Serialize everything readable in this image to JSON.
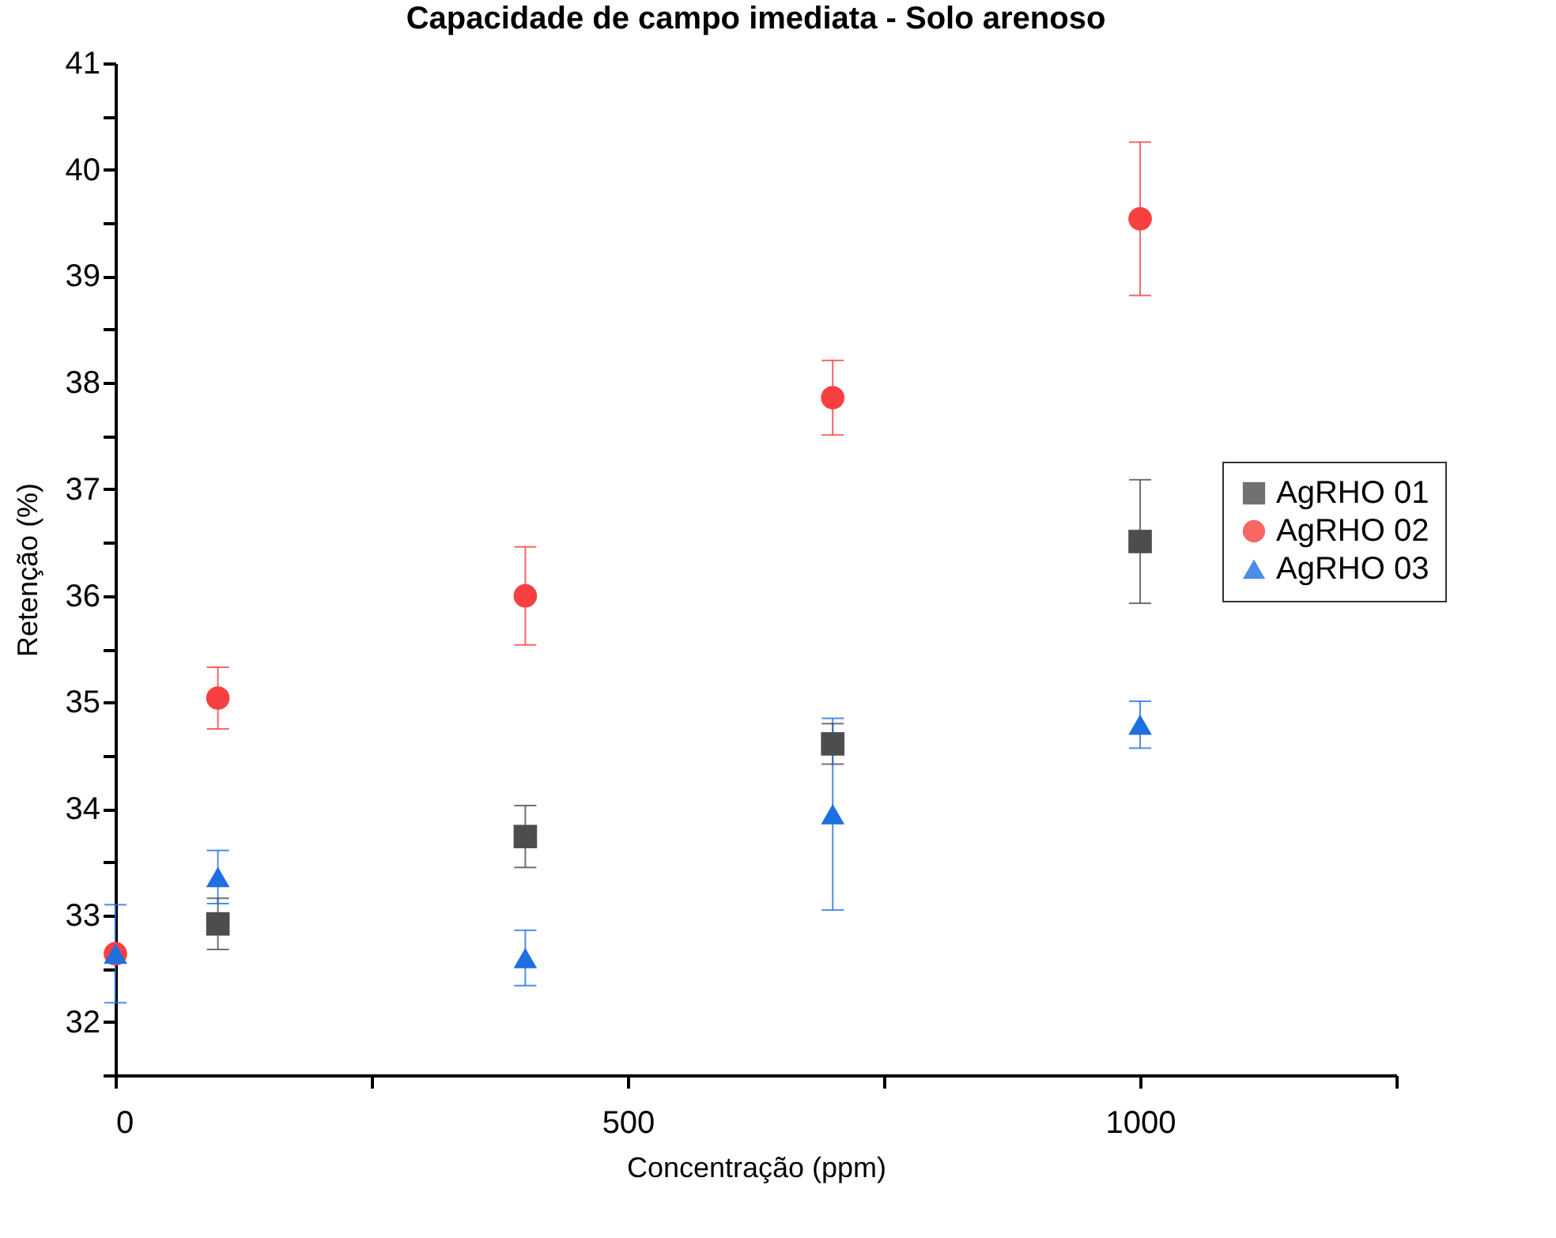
{
  "chart_data": {
    "type": "scatter",
    "title": "Capacidade de campo imediata - Solo arenoso",
    "xlabel": "Concentração (ppm)",
    "ylabel": "Retenção (%)",
    "x": [
      0,
      100,
      400,
      700,
      1000
    ],
    "series": [
      {
        "name": "AgRHO 01",
        "color": "#4d4d4d",
        "marker": "square",
        "values": [
          null,
          32.92,
          33.74,
          34.61,
          36.51
        ],
        "errors": [
          null,
          0.24,
          0.29,
          0.19,
          0.58
        ]
      },
      {
        "name": "AgRHO 02",
        "color": "#f84040",
        "marker": "circle",
        "values": [
          32.64,
          35.04,
          36.0,
          37.86,
          39.54
        ],
        "errors": [
          null,
          0.29,
          0.46,
          0.35,
          0.72
        ]
      },
      {
        "name": "AgRHO 03",
        "color": "#1f6fe0",
        "marker": "triangle",
        "values": [
          32.64,
          33.36,
          32.6,
          33.95,
          34.79
        ],
        "errors": [
          0.46,
          0.25,
          0.26,
          0.9,
          0.22
        ]
      }
    ],
    "xlim": [
      0,
      1250
    ],
    "xticks": [
      0,
      {
        "value": 250,
        "label": null
      },
      500,
      {
        "value": 750,
        "label": null
      },
      1000,
      {
        "value": 1250,
        "label": null
      }
    ],
    "ylim": [
      31.5,
      41
    ],
    "yticks": [
      {
        "value": 31.5,
        "label": null
      },
      32,
      {
        "value": 32.5,
        "label": null
      },
      33,
      {
        "value": 33.5,
        "label": null
      },
      34,
      {
        "value": 34.5,
        "label": null
      },
      35,
      {
        "value": 35.5,
        "label": null
      },
      36,
      {
        "value": 36.5,
        "label": null
      },
      37,
      {
        "value": 37.5,
        "label": null
      },
      38,
      {
        "value": 38.5,
        "label": null
      },
      39,
      {
        "value": 39.5,
        "label": null
      },
      40,
      {
        "value": 40.5,
        "label": null
      },
      41
    ],
    "grid": false,
    "legend": "right"
  }
}
